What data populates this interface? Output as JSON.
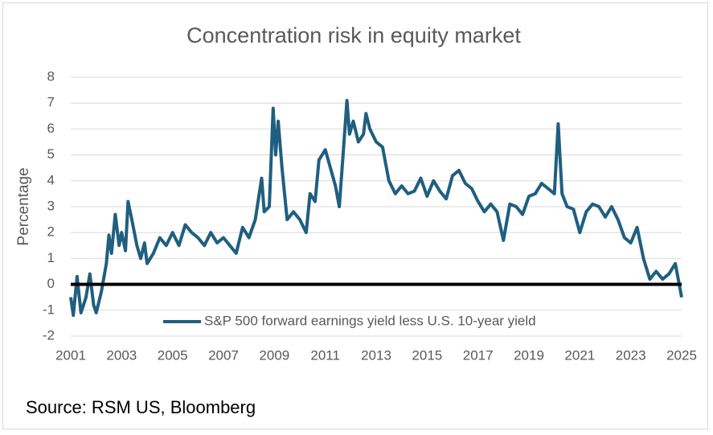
{
  "chart_data": {
    "type": "line",
    "title": "Concentration risk in equity market",
    "ylabel": "Percentage",
    "source": "Source: RSM US, Bloomberg",
    "x": [
      2001.0,
      2001.1,
      2001.25,
      2001.4,
      2001.6,
      2001.75,
      2001.9,
      2002.0,
      2002.2,
      2002.4,
      2002.5,
      2002.6,
      2002.75,
      2002.9,
      2003.0,
      2003.15,
      2003.25,
      2003.4,
      2003.6,
      2003.75,
      2003.9,
      2004.0,
      2004.25,
      2004.5,
      2004.75,
      2005.0,
      2005.25,
      2005.5,
      2005.75,
      2006.0,
      2006.25,
      2006.5,
      2006.75,
      2007.0,
      2007.25,
      2007.5,
      2007.75,
      2008.0,
      2008.25,
      2008.5,
      2008.6,
      2008.8,
      2008.95,
      2009.05,
      2009.15,
      2009.3,
      2009.5,
      2009.75,
      2010.0,
      2010.25,
      2010.4,
      2010.6,
      2010.75,
      2011.0,
      2011.2,
      2011.4,
      2011.55,
      2011.7,
      2011.85,
      2011.95,
      2012.1,
      2012.3,
      2012.5,
      2012.6,
      2012.75,
      2013.0,
      2013.25,
      2013.5,
      2013.75,
      2014.0,
      2014.25,
      2014.5,
      2014.75,
      2015.0,
      2015.25,
      2015.5,
      2015.75,
      2016.0,
      2016.25,
      2016.5,
      2016.75,
      2017.0,
      2017.25,
      2017.5,
      2017.75,
      2018.0,
      2018.25,
      2018.5,
      2018.75,
      2019.0,
      2019.25,
      2019.5,
      2019.75,
      2020.0,
      2020.15,
      2020.3,
      2020.5,
      2020.75,
      2021.0,
      2021.25,
      2021.5,
      2021.75,
      2022.0,
      2022.25,
      2022.5,
      2022.75,
      2023.0,
      2023.25,
      2023.5,
      2023.75,
      2024.0,
      2024.25,
      2024.5,
      2024.75,
      2025.0
    ],
    "series": [
      {
        "name": "S&P 500 forward earnings yield less U.S. 10-year yield",
        "color": "#1f5f80",
        "values": [
          -0.5,
          -1.2,
          0.3,
          -1.1,
          -0.5,
          0.4,
          -0.8,
          -1.1,
          -0.3,
          0.8,
          1.9,
          1.2,
          2.7,
          1.5,
          2.0,
          1.3,
          3.2,
          2.5,
          1.5,
          1.0,
          1.6,
          0.8,
          1.2,
          1.8,
          1.5,
          2.0,
          1.5,
          2.3,
          2.0,
          1.8,
          1.5,
          2.0,
          1.6,
          1.8,
          1.5,
          1.2,
          2.2,
          1.8,
          2.5,
          4.1,
          2.8,
          3.0,
          6.8,
          5.0,
          6.3,
          4.5,
          2.5,
          2.8,
          2.5,
          2.0,
          3.5,
          3.2,
          4.8,
          5.2,
          4.5,
          3.8,
          3.0,
          5.0,
          7.1,
          5.8,
          6.3,
          5.5,
          5.8,
          6.6,
          6.0,
          5.5,
          5.3,
          4.0,
          3.5,
          3.8,
          3.5,
          3.6,
          4.1,
          3.4,
          4.0,
          3.6,
          3.3,
          4.2,
          4.4,
          3.9,
          3.7,
          3.2,
          2.8,
          3.1,
          2.8,
          1.7,
          3.1,
          3.0,
          2.7,
          3.4,
          3.5,
          3.9,
          3.7,
          3.5,
          6.2,
          3.5,
          3.0,
          2.9,
          2.0,
          2.8,
          3.1,
          3.0,
          2.6,
          3.0,
          2.5,
          1.8,
          1.6,
          2.2,
          1.0,
          0.2,
          0.5,
          0.2,
          0.4,
          0.8,
          -0.5
        ]
      }
    ],
    "xlim": [
      2001,
      2025
    ],
    "xticks": [
      2001,
      2003,
      2005,
      2007,
      2009,
      2011,
      2013,
      2015,
      2017,
      2019,
      2021,
      2023,
      2025
    ],
    "ylim": [
      -2,
      8
    ],
    "yticks": [
      -2,
      -1,
      0,
      1,
      2,
      3,
      4,
      5,
      6,
      7,
      8
    ],
    "grid": true,
    "zero_line": true,
    "legend": "bottom"
  }
}
